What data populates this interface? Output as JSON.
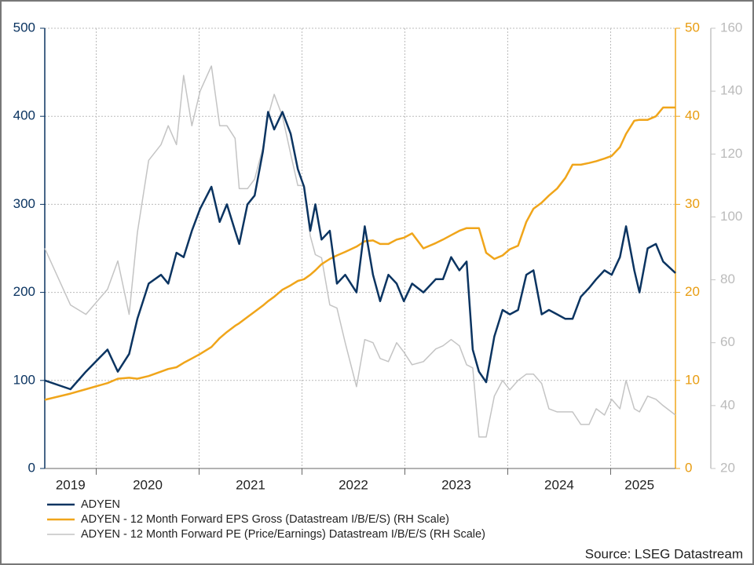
{
  "chart_data": {
    "type": "line",
    "source": "Source: LSEG Datastream",
    "x": [
      2019.5,
      2019.75,
      2019.9,
      2020.11,
      2020.21,
      2020.32,
      2020.4,
      2020.51,
      2020.63,
      2020.7,
      2020.78,
      2020.85,
      2020.93,
      2021.01,
      2021.12,
      2021.2,
      2021.27,
      2021.35,
      2021.39,
      2021.47,
      2021.54,
      2021.62,
      2021.67,
      2021.73,
      2021.81,
      2021.89,
      2021.96,
      2022.02,
      2022.08,
      2022.13,
      2022.19,
      2022.27,
      2022.34,
      2022.42,
      2022.53,
      2022.61,
      2022.69,
      2022.76,
      2022.84,
      2022.92,
      2022.99,
      2023.07,
      2023.18,
      2023.3,
      2023.37,
      2023.45,
      2023.53,
      2023.6,
      2023.66,
      2023.72,
      2023.79,
      2023.87,
      2023.95,
      2024.02,
      2024.1,
      2024.18,
      2024.25,
      2024.33,
      2024.4,
      2024.48,
      2024.56,
      2024.63,
      2024.71,
      2024.79,
      2024.86,
      2024.94,
      2025.01,
      2025.09,
      2025.15,
      2025.23,
      2025.28,
      2025.36,
      2025.44,
      2025.51,
      2025.63
    ],
    "series": [
      {
        "name": "ADYEN",
        "color": "#0b3461",
        "axis": "y",
        "values": [
          100,
          90,
          110,
          135,
          110,
          130,
          170,
          210,
          220,
          210,
          245,
          240,
          270,
          295,
          320,
          280,
          300,
          270,
          255,
          300,
          310,
          360,
          405,
          385,
          405,
          380,
          340,
          320,
          270,
          300,
          260,
          270,
          210,
          220,
          200,
          275,
          220,
          190,
          220,
          210,
          190,
          210,
          200,
          215,
          215,
          240,
          225,
          235,
          135,
          110,
          98,
          150,
          180,
          175,
          180,
          220,
          225,
          175,
          180,
          175,
          170,
          170,
          195,
          205,
          215,
          225,
          220,
          240,
          275,
          225,
          200,
          250,
          255,
          235,
          222
        ]
      },
      {
        "name": "ADYEN - 12 Month Forward EPS Gross (Datastream I/B/E/S) (RH Scale)",
        "color": "#f0a51a",
        "axis": "y2",
        "values": [
          7.8,
          8.5,
          9,
          9.7,
          10.2,
          10.3,
          10.2,
          10.5,
          11,
          11.3,
          11.5,
          12,
          12.5,
          13,
          13.8,
          14.8,
          15.5,
          16.2,
          16.5,
          17.2,
          17.8,
          18.5,
          19,
          19.5,
          20.3,
          20.8,
          21.3,
          21.5,
          22,
          22.5,
          23.2,
          23.8,
          24.2,
          24.6,
          25.2,
          25.8,
          25.9,
          25.5,
          25.5,
          26,
          26.2,
          26.7,
          25,
          25.6,
          26,
          26.5,
          27,
          27.3,
          27.3,
          27.3,
          24.5,
          23.8,
          24.2,
          24.9,
          25.3,
          28,
          29.5,
          30.2,
          31,
          31.8,
          33,
          34.5,
          34.5,
          34.7,
          34.9,
          35.2,
          35.5,
          36.5,
          38,
          39.5,
          39.6,
          39.6,
          40,
          41,
          41
        ]
      },
      {
        "name": "ADYEN - 12 Month Forward PE (Price/Earnings) Datastream I/B/E/S (RH Scale)",
        "color": "#c4c4c4",
        "axis": "y3",
        "values": [
          90,
          72,
          69,
          77,
          86,
          69,
          95,
          118,
          123,
          129,
          123,
          145,
          129,
          140,
          148,
          129,
          129,
          125,
          109,
          109,
          112,
          122,
          132,
          139,
          132,
          120,
          110,
          110,
          94,
          88,
          87,
          72,
          71,
          60,
          46,
          61,
          60,
          55,
          54,
          60,
          57,
          53,
          54,
          58,
          59,
          61,
          59,
          53,
          52,
          30,
          30,
          43,
          48,
          45,
          48,
          50,
          50,
          47,
          39,
          38,
          38,
          38,
          34,
          34,
          39,
          37,
          42,
          39,
          48,
          39,
          38,
          43,
          42,
          40,
          37
        ]
      }
    ],
    "xlim": [
      2019.5,
      2025.63
    ],
    "xticks": [
      {
        "value": 2019.75,
        "label": "2019"
      },
      {
        "value": 2020.5,
        "label": "2020"
      },
      {
        "value": 2021.5,
        "label": "2021"
      },
      {
        "value": 2022.5,
        "label": "2022"
      },
      {
        "value": 2023.5,
        "label": "2023"
      },
      {
        "value": 2024.5,
        "label": "2024"
      },
      {
        "value": 2025.28,
        "label": "2025"
      }
    ],
    "xgrid": [
      2020,
      2021,
      2022,
      2023,
      2024,
      2025
    ],
    "ylim": [
      0,
      500
    ],
    "yticks": [
      0,
      100,
      200,
      300,
      400,
      500
    ],
    "y2lim": [
      0,
      50
    ],
    "y2ticks": [
      0,
      10,
      20,
      30,
      40,
      50
    ],
    "y3lim": [
      20,
      160
    ],
    "y3ticks": [
      20,
      40,
      60,
      80,
      100,
      120,
      140,
      160
    ],
    "grid": true,
    "legend": "bottom-left"
  }
}
